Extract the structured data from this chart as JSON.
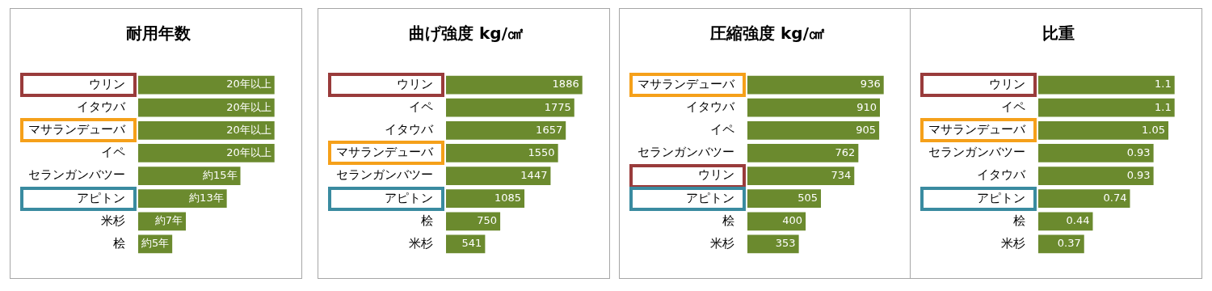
{
  "chart_data": [
    {
      "type": "bar",
      "title": "耐用年数",
      "orientation": "horizontal",
      "categories": [
        "ウリン",
        "イタウバ",
        "マサランデューバ",
        "イペ",
        "セランガンバツー",
        "アピトン",
        "米杉",
        "桧"
      ],
      "values": [
        20,
        20,
        20,
        20,
        15,
        13,
        7,
        5
      ],
      "value_labels": [
        "20年以上",
        "20年以上",
        "20年以上",
        "20年以上",
        "約15年",
        "約13年",
        "約7年",
        "約5年"
      ],
      "color": "#6b8a2e"
    },
    {
      "type": "bar",
      "title": "曲げ強度 kg/㎠",
      "orientation": "horizontal",
      "categories": [
        "ウリン",
        "イペ",
        "イタウバ",
        "マサランデューバ",
        "セランガンバツー",
        "アピトン",
        "桧",
        "米杉"
      ],
      "values": [
        1886,
        1775,
        1657,
        1550,
        1447,
        1085,
        750,
        541
      ],
      "data_labels": true,
      "color": "#6b8a2e"
    },
    {
      "type": "bar",
      "title": "圧縮強度 kg/㎠",
      "orientation": "horizontal",
      "categories": [
        "マサランデューバ",
        "イタウバ",
        "イペ",
        "セランガンバツー",
        "ウリン",
        "アピトン",
        "桧",
        "米杉"
      ],
      "values": [
        936,
        910,
        905,
        762,
        734,
        505,
        400,
        353
      ],
      "data_labels": true,
      "color": "#6b8a2e"
    },
    {
      "type": "bar",
      "title": "比重",
      "orientation": "horizontal",
      "categories": [
        "ウリン",
        "イペ",
        "マサランデューバ",
        "セランガンバツー",
        "イタウバ",
        "アピトン",
        "桧",
        "米杉"
      ],
      "values": [
        1.1,
        1.1,
        1.05,
        0.93,
        0.93,
        0.74,
        0.44,
        0.37
      ],
      "data_labels": true,
      "color": "#6b8a2e"
    }
  ]
}
